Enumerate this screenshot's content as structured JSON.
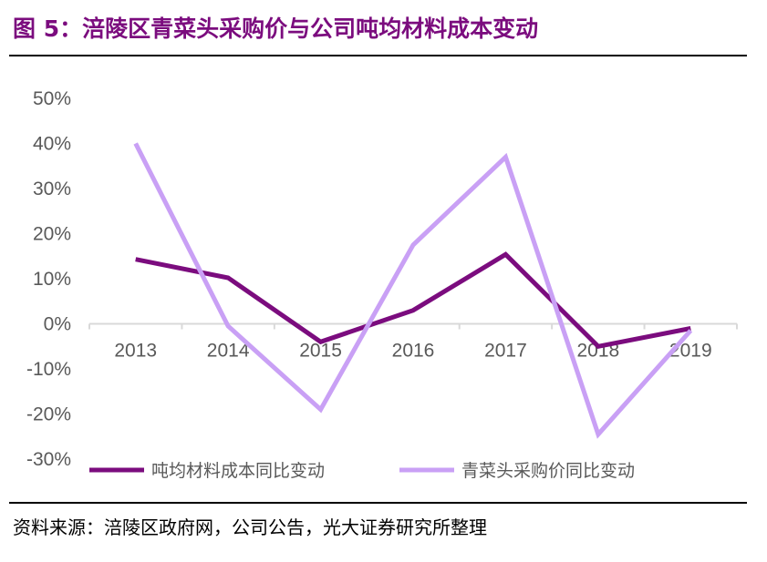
{
  "figure": {
    "title": "图 5：涪陵区青菜头采购价与公司吨均材料成本变动",
    "source": "资料来源：涪陵区政府网，公司公告，光大证券研究所整理"
  },
  "chart_data": {
    "type": "line",
    "title": "",
    "xlabel": "",
    "ylabel": "",
    "categories": [
      "2013",
      "2014",
      "2015",
      "2016",
      "2017",
      "2018",
      "2019"
    ],
    "ylim": [
      -0.3,
      0.5
    ],
    "yticks": [
      -0.3,
      -0.2,
      -0.1,
      0,
      0.1,
      0.2,
      0.3,
      0.4,
      0.5
    ],
    "ytick_labels": [
      "-30%",
      "-20%",
      "-10%",
      "0%",
      "10%",
      "20%",
      "30%",
      "40%",
      "50%"
    ],
    "grid": false,
    "legend_position": "bottom",
    "series": [
      {
        "name": "吨均材料成本同比变动",
        "color": "#7b0c7e",
        "values": [
          0.143,
          0.102,
          -0.04,
          0.03,
          0.154,
          -0.05,
          -0.01
        ]
      },
      {
        "name": "青菜头采购价同比变动",
        "color": "#c9a0f5",
        "values": [
          0.4,
          -0.005,
          -0.19,
          0.175,
          0.37,
          -0.245,
          -0.015
        ]
      }
    ]
  }
}
